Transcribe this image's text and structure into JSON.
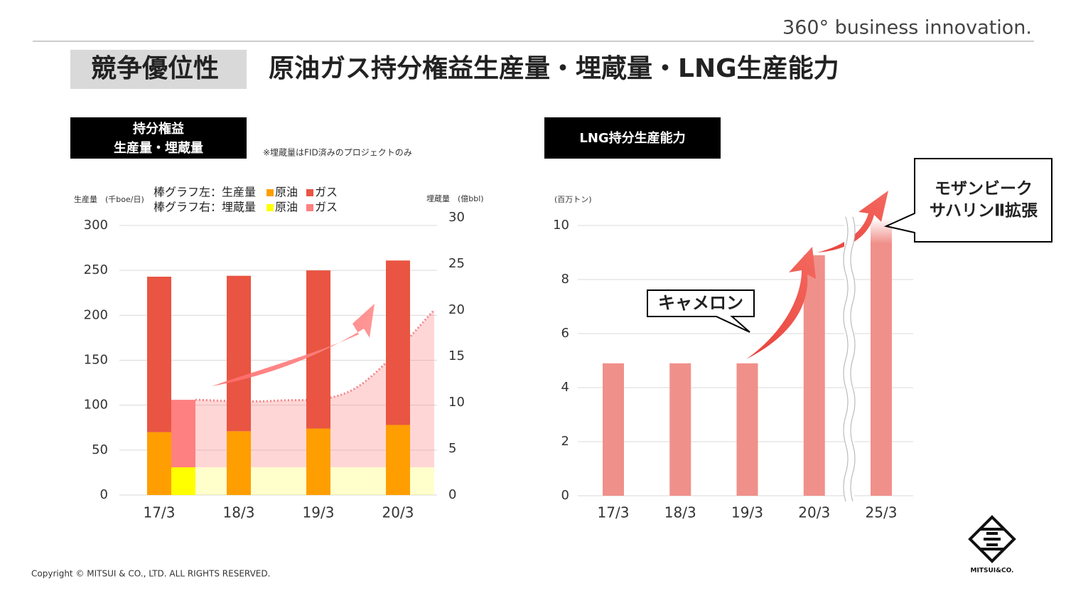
{
  "header": {
    "tagline": "360° business innovation.",
    "badge": "競争優位性",
    "title": "原油ガス持分権益生産量・埋蔵量・LNG生産能力"
  },
  "footer": {
    "copyright": "Copyright © MITSUI & CO., LTD. ALL RIGHTS RESERVED.",
    "logo": "MITSUI&CO."
  },
  "chart_data": [
    {
      "type": "stacked_bar",
      "heading": [
        "持分権益",
        "生産量・埋蔵量"
      ],
      "note": "※埋蔵量はFID済みのプロジェクトのみ",
      "y_label": "生産量　(千boe/日)",
      "y2_label": "埋蔵量　(億bbl)",
      "legend_labels": [
        "棒グラフ左：生産量",
        "棒グラフ右：埋蔵量"
      ],
      "categories": [
        "17/3",
        "18/3",
        "19/3",
        "20/3"
      ],
      "series": [
        {
          "name": "原油",
          "color": "#ff9e00",
          "values": [
            70,
            71,
            74,
            78
          ]
        },
        {
          "name": "ガス",
          "color": "#e95542",
          "values": [
            173,
            173,
            176,
            183
          ]
        },
        {
          "name": "原油",
          "color": "#ffff00",
          "axis": "y2",
          "values": [
            3,
            3,
            3,
            3
          ]
        },
        {
          "name": "ガス",
          "color": "#ff8080",
          "axis": "y2",
          "values": [
            7.3,
            7.2,
            8.5,
            17
          ]
        }
      ],
      "ylim": [
        0,
        300
      ],
      "yticks": [
        0,
        50,
        100,
        150,
        200,
        250,
        300
      ],
      "y2lim": [
        0,
        30
      ],
      "y2ticks": [
        0,
        5,
        10,
        15,
        20,
        25,
        30
      ],
      "grid": true
    },
    {
      "type": "bar",
      "heading": "LNG持分生産能力",
      "y_label": "(百万トン)",
      "categories": [
        "17/3",
        "18/3",
        "19/3",
        "20/3",
        "25/3"
      ],
      "values": [
        4.9,
        4.9,
        4.9,
        8.9,
        10
      ],
      "color": "#f0908a",
      "ylim": [
        0,
        10
      ],
      "yticks": [
        0,
        2,
        4,
        6,
        8,
        10
      ],
      "grid": true,
      "annotations": [
        {
          "text": [
            "キャメロン"
          ]
        },
        {
          "text": [
            "モザンビーク",
            "サハリンⅡ拡張"
          ]
        }
      ]
    }
  ]
}
